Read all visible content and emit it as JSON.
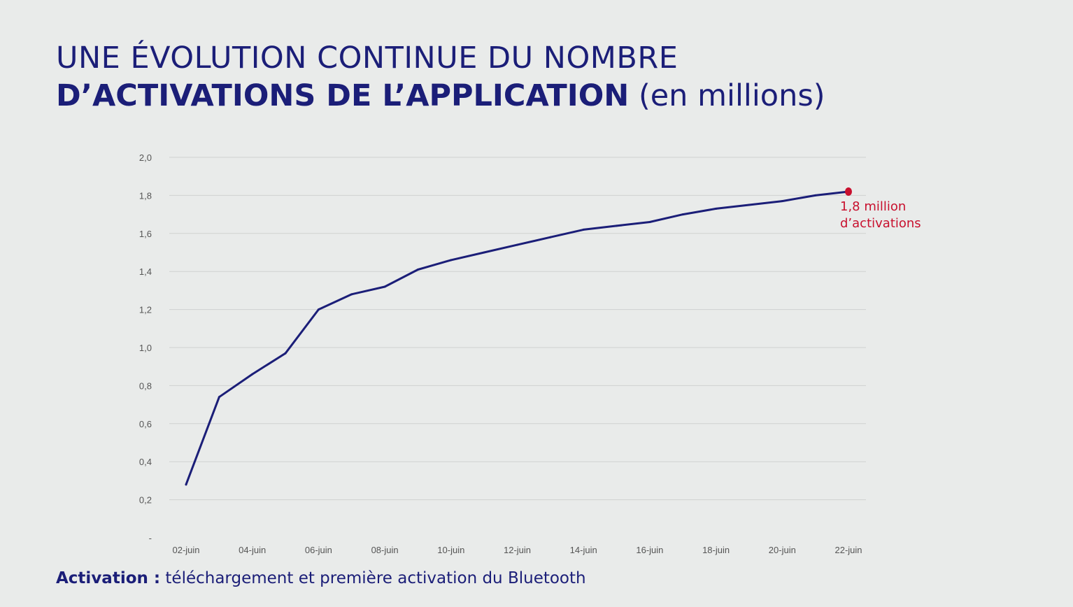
{
  "title": {
    "line1": "UNE ÉVOLUTION CONTINUE DU NOMBRE",
    "line2_bold": "D’ACTIVATIONS DE L’APPLICATION",
    "line2_light": "(en millions)"
  },
  "footnote": {
    "term": "Activation :",
    "definition": "téléchargement et première activation du Bluetooth"
  },
  "annotation": {
    "line1": "1,8 million",
    "line2": "d’activations"
  },
  "colors": {
    "line": "#1b1e78",
    "highlight": "#c8102e",
    "grid": "#cfd1d0",
    "tick_text": "#555555"
  },
  "chart_data": {
    "type": "line",
    "title": "UNE ÉVOLUTION CONTINUE DU NOMBRE D’ACTIVATIONS DE L’APPLICATION (en millions)",
    "xlabel": "",
    "ylabel": "",
    "ylim": [
      0,
      2.0
    ],
    "grid": true,
    "y_ticks": [
      "-",
      "0,2",
      "0,4",
      "0,6",
      "0,8",
      "1,0",
      "1,2",
      "1,4",
      "1,6",
      "1,8",
      "2,0"
    ],
    "x_tick_labels": [
      "02-juin",
      "04-juin",
      "06-juin",
      "08-juin",
      "10-juin",
      "12-juin",
      "14-juin",
      "16-juin",
      "18-juin",
      "20-juin",
      "22-juin"
    ],
    "x": [
      "02-juin",
      "03-juin",
      "04-juin",
      "05-juin",
      "06-juin",
      "07-juin",
      "08-juin",
      "09-juin",
      "10-juin",
      "11-juin",
      "12-juin",
      "13-juin",
      "14-juin",
      "15-juin",
      "16-juin",
      "17-juin",
      "18-juin",
      "19-juin",
      "20-juin",
      "21-juin",
      "22-juin"
    ],
    "series": [
      {
        "values": [
          0.28,
          0.74,
          0.86,
          0.97,
          1.2,
          1.28,
          1.32,
          1.41,
          1.46,
          1.5,
          1.54,
          1.58,
          1.62,
          1.64,
          1.66,
          1.7,
          1.73,
          1.75,
          1.77,
          1.8,
          1.82
        ]
      }
    ],
    "highlight": {
      "x": "22-juin",
      "value": 1.82,
      "label": "1,8 million d’activations"
    }
  }
}
